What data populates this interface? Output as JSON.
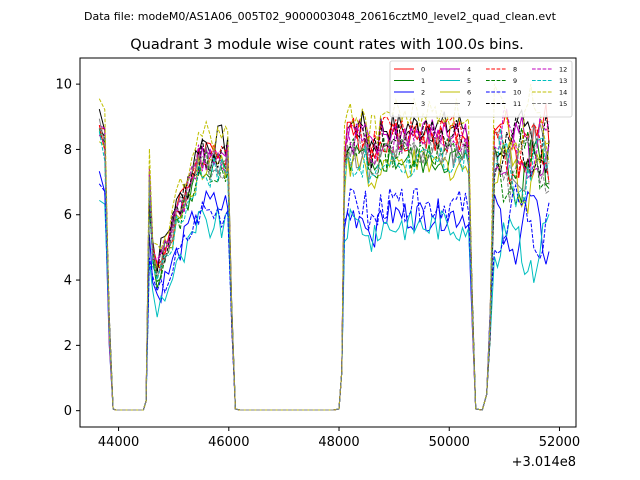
{
  "chart_data": {
    "type": "line",
    "suptitle": "Data file: modeM0/AS1A06_005T02_9000003048_20616cztM0_level2_quad_clean.evt",
    "title": "Quadrant 3 module wise count rates with 100.0s bins.",
    "xlabel": "",
    "ylabel": "",
    "x_offset_label": "+3.014e8",
    "xlim": [
      43300,
      52300
    ],
    "ylim": [
      -0.5,
      10.8
    ],
    "xticks": [
      44000,
      46000,
      48000,
      50000,
      52000
    ],
    "xtick_labels": [
      "44000",
      "46000",
      "48000",
      "50000",
      "52000"
    ],
    "yticks": [
      0,
      2,
      4,
      6,
      8,
      10
    ],
    "ytick_labels": [
      "0",
      "2",
      "4",
      "6",
      "8",
      "10"
    ],
    "legend_position": "top-right",
    "series": [
      {
        "name": "0",
        "color": "#ff0000",
        "dash": false,
        "level_a": 8.1,
        "level_b": 8.4,
        "level_c": 8.2,
        "seed": 1
      },
      {
        "name": "1",
        "color": "#008000",
        "dash": false,
        "level_a": 7.6,
        "level_b": 7.7,
        "level_c": 7.4,
        "seed": 2
      },
      {
        "name": "2",
        "color": "#0000ff",
        "dash": false,
        "level_a": 6.4,
        "level_b": 6.0,
        "level_c": 5.6,
        "seed": 3
      },
      {
        "name": "3",
        "color": "#000000",
        "dash": false,
        "level_a": 8.4,
        "level_b": 8.7,
        "level_c": 8.3,
        "seed": 4
      },
      {
        "name": "4",
        "color": "#bf00bf",
        "dash": false,
        "level_a": 8.0,
        "level_b": 8.5,
        "level_c": 8.0,
        "seed": 5
      },
      {
        "name": "5",
        "color": "#00bfbf",
        "dash": false,
        "level_a": 5.8,
        "level_b": 5.7,
        "level_c": 5.1,
        "seed": 6
      },
      {
        "name": "6",
        "color": "#bfbf00",
        "dash": false,
        "level_a": 7.7,
        "level_b": 7.5,
        "level_c": 7.3,
        "seed": 7
      },
      {
        "name": "7",
        "color": "#808080",
        "dash": false,
        "level_a": 7.9,
        "level_b": 7.9,
        "level_c": 7.6,
        "seed": 8
      },
      {
        "name": "8",
        "color": "#ff0000",
        "dash": true,
        "level_a": 7.8,
        "level_b": 8.6,
        "level_c": 8.0,
        "seed": 9
      },
      {
        "name": "9",
        "color": "#008000",
        "dash": true,
        "level_a": 7.6,
        "level_b": 7.9,
        "level_c": 7.5,
        "seed": 10
      },
      {
        "name": "10",
        "color": "#0000ff",
        "dash": true,
        "level_a": 6.2,
        "level_b": 6.3,
        "level_c": 5.8,
        "seed": 11
      },
      {
        "name": "11",
        "color": "#000000",
        "dash": true,
        "level_a": 8.0,
        "level_b": 8.4,
        "level_c": 8.0,
        "seed": 12
      },
      {
        "name": "12",
        "color": "#bf00bf",
        "dash": true,
        "level_a": 7.9,
        "level_b": 8.3,
        "level_c": 8.1,
        "seed": 13
      },
      {
        "name": "13",
        "color": "#00bfbf",
        "dash": true,
        "level_a": 7.5,
        "level_b": 7.6,
        "level_c": 7.3,
        "seed": 14
      },
      {
        "name": "14",
        "color": "#bfbf00",
        "dash": true,
        "level_a": 8.6,
        "level_b": 9.1,
        "level_c": 8.8,
        "seed": 15
      },
      {
        "name": "15",
        "color": "#808080",
        "dash": true,
        "level_a": 7.8,
        "level_b": 8.0,
        "level_c": 7.7,
        "seed": 16
      }
    ]
  }
}
